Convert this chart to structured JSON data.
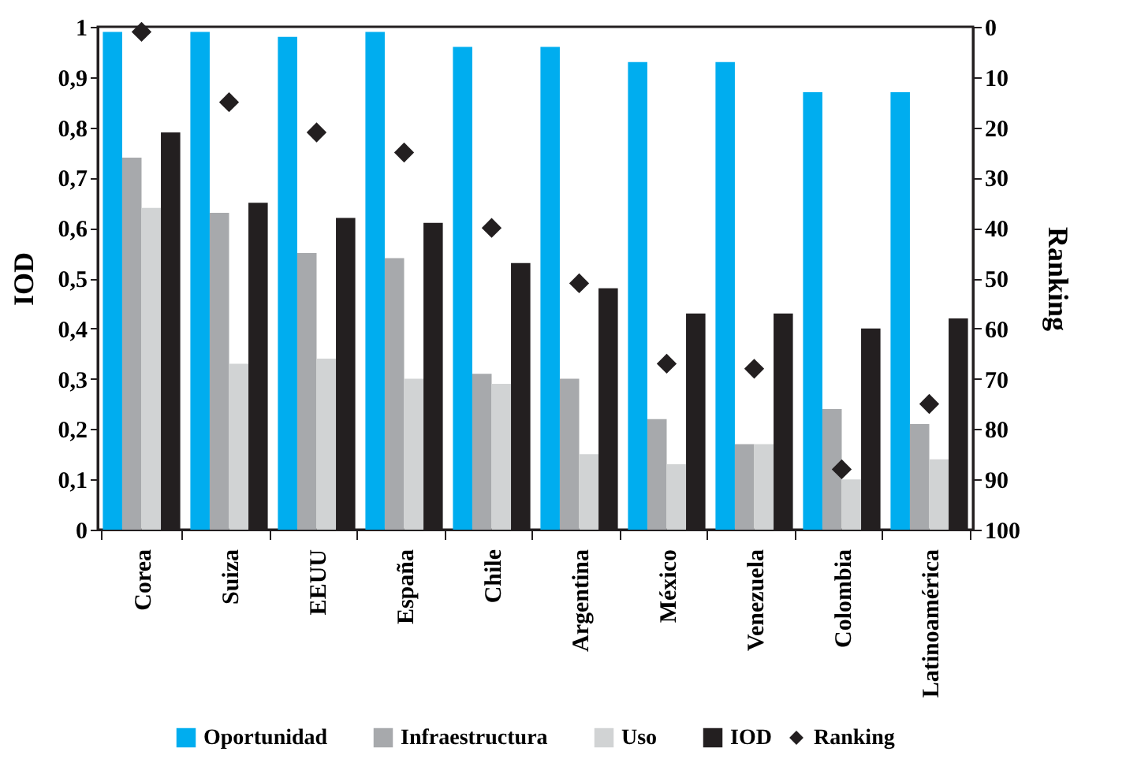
{
  "chart_data": {
    "type": "bar",
    "ylabel": "IOD",
    "y2label": "Ranking",
    "categories": [
      "Corea",
      "Suiza",
      "EEUU",
      "España",
      "Chile",
      "Argentina",
      "México",
      "Venezuela",
      "Colombia",
      "Latinoamérica"
    ],
    "series": [
      {
        "name": "Oportunidad",
        "color": "#00adef",
        "values": [
          0.99,
          0.99,
          0.98,
          0.99,
          0.96,
          0.96,
          0.93,
          0.93,
          0.87,
          0.87
        ]
      },
      {
        "name": "Infraestructura",
        "color": "#a7a9ac",
        "values": [
          0.74,
          0.63,
          0.55,
          0.54,
          0.31,
          0.3,
          0.22,
          0.17,
          0.24,
          0.21
        ]
      },
      {
        "name": "Uso",
        "color": "#d1d3d4",
        "values": [
          0.64,
          0.33,
          0.34,
          0.3,
          0.29,
          0.15,
          0.13,
          0.17,
          0.1,
          0.14
        ]
      },
      {
        "name": "IOD",
        "color": "#231f20",
        "values": [
          0.79,
          0.65,
          0.62,
          0.61,
          0.53,
          0.48,
          0.43,
          0.43,
          0.4,
          0.42
        ]
      },
      {
        "name": "Ranking",
        "type": "scatter",
        "axis": "y2",
        "marker": "diamond",
        "color": "#231f20",
        "values": [
          1,
          15,
          21,
          25,
          40,
          51,
          67,
          68,
          88,
          75
        ]
      }
    ],
    "ylim": [
      0,
      1
    ],
    "yticks": [
      0,
      {
        "value": 0.1,
        "label": "0,1"
      },
      {
        "value": 0.2,
        "label": "0,2"
      },
      {
        "value": 0.3,
        "label": "0,3"
      },
      {
        "value": 0.4,
        "label": "0,4"
      },
      {
        "value": 0.5,
        "label": "0,5"
      },
      {
        "value": 0.6,
        "label": "0,6"
      },
      {
        "value": 0.7,
        "label": "0,7"
      },
      {
        "value": 0.8,
        "label": "0,8"
      },
      {
        "value": 0.9,
        "label": "0,9"
      },
      1
    ],
    "y2lim": [
      100,
      0
    ],
    "y2ticks": [
      0,
      10,
      20,
      30,
      40,
      50,
      60,
      70,
      80,
      90,
      100
    ],
    "grid": false,
    "legend": "bottom"
  }
}
